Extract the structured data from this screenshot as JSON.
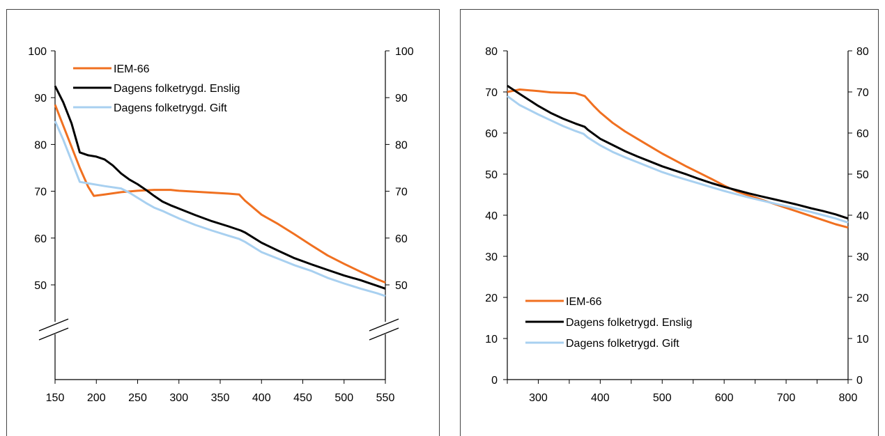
{
  "chart_data": [
    {
      "type": "line",
      "title": "",
      "xlabel": "",
      "ylabel": "",
      "xlim": [
        150,
        550
      ],
      "ylim_display": [
        40,
        100
      ],
      "axis_break": true,
      "x_ticks": [
        "150",
        "200",
        "250",
        "300",
        "350",
        "400",
        "450",
        "500",
        "550"
      ],
      "y_ticks_left": [
        "100",
        "90",
        "80",
        "70",
        "60",
        "50"
      ],
      "y_ticks_right": [
        "100",
        "90",
        "80",
        "70",
        "60",
        "50"
      ],
      "legend_position": "top-left",
      "series": [
        {
          "name": "IEM-66",
          "color": "#f07020",
          "points": [
            [
              150,
              88.5
            ],
            [
              160,
              84
            ],
            [
              170,
              79.5
            ],
            [
              180,
              75
            ],
            [
              190,
              71
            ],
            [
              197,
              69
            ],
            [
              210,
              69.3
            ],
            [
              230,
              69.8
            ],
            [
              250,
              70.1
            ],
            [
              270,
              70.3
            ],
            [
              290,
              70.3
            ],
            [
              300,
              70.1
            ],
            [
              320,
              69.9
            ],
            [
              340,
              69.7
            ],
            [
              360,
              69.5
            ],
            [
              373,
              69.3
            ],
            [
              380,
              68
            ],
            [
              400,
              65
            ],
            [
              420,
              63
            ],
            [
              440,
              60.8
            ],
            [
              460,
              58.5
            ],
            [
              480,
              56.3
            ],
            [
              500,
              54.5
            ],
            [
              520,
              52.8
            ],
            [
              540,
              51.2
            ],
            [
              550,
              50.5
            ]
          ]
        },
        {
          "name": "Dagens folketrygd. Enslig",
          "color": "#000000",
          "points": [
            [
              150,
              92.5
            ],
            [
              160,
              89
            ],
            [
              170,
              84.5
            ],
            [
              180,
              78.3
            ],
            [
              190,
              77.7
            ],
            [
              200,
              77.4
            ],
            [
              210,
              76.8
            ],
            [
              220,
              75.5
            ],
            [
              230,
              73.8
            ],
            [
              240,
              72.5
            ],
            [
              250,
              71.5
            ],
            [
              260,
              70.3
            ],
            [
              270,
              69
            ],
            [
              280,
              67.8
            ],
            [
              290,
              67
            ],
            [
              300,
              66.3
            ],
            [
              320,
              64.9
            ],
            [
              340,
              63.6
            ],
            [
              360,
              62.5
            ],
            [
              375,
              61.6
            ],
            [
              380,
              61.2
            ],
            [
              400,
              59
            ],
            [
              420,
              57.3
            ],
            [
              440,
              55.7
            ],
            [
              460,
              54.4
            ],
            [
              480,
              53.2
            ],
            [
              500,
              52
            ],
            [
              520,
              51
            ],
            [
              540,
              49.8
            ],
            [
              550,
              49.2
            ]
          ]
        },
        {
          "name": "Dagens folketrygd. Gift",
          "color": "#a8d0f0",
          "points": [
            [
              150,
              85
            ],
            [
              160,
              81
            ],
            [
              170,
              76.5
            ],
            [
              180,
              72
            ],
            [
              190,
              71.7
            ],
            [
              200,
              71.4
            ],
            [
              210,
              71.1
            ],
            [
              230,
              70.6
            ],
            [
              240,
              69.7
            ],
            [
              250,
              68.6
            ],
            [
              260,
              67.5
            ],
            [
              270,
              66.5
            ],
            [
              280,
              65.8
            ],
            [
              290,
              65
            ],
            [
              300,
              64.2
            ],
            [
              320,
              62.8
            ],
            [
              340,
              61.6
            ],
            [
              360,
              60.5
            ],
            [
              373,
              59.8
            ],
            [
              380,
              59.2
            ],
            [
              400,
              57
            ],
            [
              420,
              55.6
            ],
            [
              440,
              54.2
            ],
            [
              460,
              53
            ],
            [
              480,
              51.5
            ],
            [
              500,
              50.3
            ],
            [
              520,
              49.2
            ],
            [
              540,
              48.2
            ],
            [
              550,
              47.6
            ]
          ]
        }
      ]
    },
    {
      "type": "line",
      "title": "",
      "xlabel": "",
      "ylabel": "",
      "xlim": [
        250,
        800
      ],
      "ylim": [
        0,
        80
      ],
      "x_ticks": [
        "300",
        "400",
        "500",
        "600",
        "700",
        "800"
      ],
      "y_ticks_left": [
        "80",
        "70",
        "60",
        "50",
        "40",
        "30",
        "20",
        "10",
        "0"
      ],
      "y_ticks_right": [
        "80",
        "70",
        "60",
        "50",
        "40",
        "30",
        "20",
        "10",
        "0"
      ],
      "legend_position": "bottom-left",
      "series": [
        {
          "name": "IEM-66",
          "color": "#f07020",
          "points": [
            [
              250,
              70
            ],
            [
              270,
              70.6
            ],
            [
              300,
              70.2
            ],
            [
              320,
              69.9
            ],
            [
              360,
              69.7
            ],
            [
              375,
              69
            ],
            [
              390,
              66.5
            ],
            [
              400,
              65
            ],
            [
              420,
              62.5
            ],
            [
              440,
              60.4
            ],
            [
              460,
              58.6
            ],
            [
              480,
              56.8
            ],
            [
              500,
              55
            ],
            [
              520,
              53.4
            ],
            [
              540,
              51.8
            ],
            [
              560,
              50.3
            ],
            [
              580,
              48.8
            ],
            [
              600,
              47.2
            ],
            [
              620,
              45.8
            ],
            [
              640,
              44.8
            ],
            [
              660,
              43.8
            ],
            [
              680,
              42.8
            ],
            [
              700,
              41.8
            ],
            [
              720,
              40.8
            ],
            [
              740,
              39.8
            ],
            [
              760,
              38.8
            ],
            [
              780,
              37.8
            ],
            [
              800,
              37
            ]
          ]
        },
        {
          "name": "Dagens folketrygd. Enslig",
          "color": "#000000",
          "points": [
            [
              250,
              71.5
            ],
            [
              270,
              69.5
            ],
            [
              300,
              66.6
            ],
            [
              320,
              64.9
            ],
            [
              340,
              63.5
            ],
            [
              360,
              62.3
            ],
            [
              375,
              61.5
            ],
            [
              380,
              60.8
            ],
            [
              400,
              58.6
            ],
            [
              420,
              57.1
            ],
            [
              440,
              55.6
            ],
            [
              460,
              54.3
            ],
            [
              480,
              53.1
            ],
            [
              500,
              51.9
            ],
            [
              520,
              50.9
            ],
            [
              540,
              49.9
            ],
            [
              560,
              48.8
            ],
            [
              580,
              47.8
            ],
            [
              600,
              46.9
            ],
            [
              620,
              46.1
            ],
            [
              640,
              45.3
            ],
            [
              660,
              44.6
            ],
            [
              680,
              43.9
            ],
            [
              700,
              43.2
            ],
            [
              720,
              42.5
            ],
            [
              740,
              41.7
            ],
            [
              760,
              41
            ],
            [
              780,
              40.2
            ],
            [
              800,
              39.2
            ]
          ]
        },
        {
          "name": "Dagens folketrygd. Gift",
          "color": "#a8d0f0",
          "points": [
            [
              250,
              69
            ],
            [
              270,
              66.8
            ],
            [
              300,
              64.5
            ],
            [
              320,
              63.1
            ],
            [
              340,
              61.7
            ],
            [
              360,
              60.5
            ],
            [
              373,
              59.8
            ],
            [
              380,
              58.9
            ],
            [
              400,
              57
            ],
            [
              420,
              55.4
            ],
            [
              440,
              54.1
            ],
            [
              460,
              52.9
            ],
            [
              480,
              51.7
            ],
            [
              500,
              50.5
            ],
            [
              520,
              49.5
            ],
            [
              540,
              48.6
            ],
            [
              560,
              47.7
            ],
            [
              580,
              46.8
            ],
            [
              600,
              45.9
            ],
            [
              620,
              45.1
            ],
            [
              640,
              44.3
            ],
            [
              660,
              43.6
            ],
            [
              680,
              42.9
            ],
            [
              700,
              42.2
            ],
            [
              720,
              41.5
            ],
            [
              740,
              40.8
            ],
            [
              760,
              40
            ],
            [
              780,
              39.2
            ],
            [
              800,
              38.2
            ]
          ]
        }
      ]
    }
  ]
}
